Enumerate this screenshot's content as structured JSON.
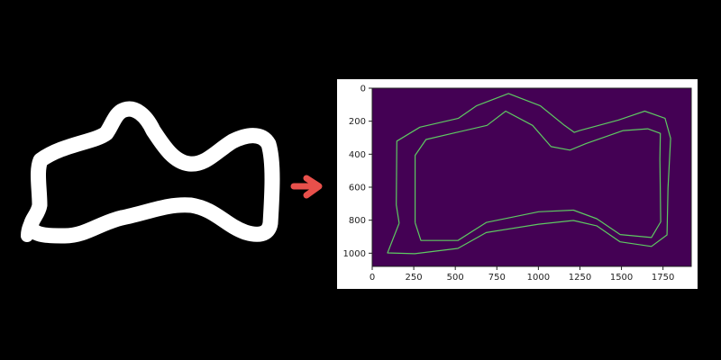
{
  "colors": {
    "background": "#000000",
    "sketch_stroke": "#ffffff",
    "arrow": "#e8504b",
    "plot_frame_bg": "#ffffff",
    "plot_area": "#440154",
    "contour": "#5ec962",
    "axis": "#222222"
  },
  "arrow": {
    "icon": "right-arrow-icon"
  },
  "chart_data": {
    "type": "image",
    "title": "",
    "xlabel": "",
    "ylabel": "",
    "xlim": [
      0,
      1920
    ],
    "ylim": [
      1080,
      0
    ],
    "x_ticks": [
      0,
      250,
      500,
      750,
      1000,
      1250,
      1500,
      1750
    ],
    "y_ticks": [
      0,
      200,
      400,
      600,
      800,
      1000
    ],
    "grid": false,
    "contours": [
      {
        "name": "",
        "points": [
          [
            162,
            818
          ],
          [
            92,
            998
          ],
          [
            256,
            1003
          ],
          [
            516,
            971
          ],
          [
            686,
            875
          ],
          [
            1001,
            824
          ],
          [
            1211,
            802
          ],
          [
            1351,
            834
          ],
          [
            1492,
            931
          ],
          [
            1680,
            959
          ],
          [
            1774,
            889
          ],
          [
            1780,
            605
          ],
          [
            1796,
            304
          ],
          [
            1762,
            182
          ],
          [
            1640,
            139
          ],
          [
            1481,
            193
          ],
          [
            1248,
            257
          ],
          [
            1216,
            268
          ],
          [
            1157,
            225
          ],
          [
            1012,
            107
          ],
          [
            820,
            32
          ],
          [
            627,
            107
          ],
          [
            519,
            182
          ],
          [
            287,
            236
          ],
          [
            148,
            321
          ],
          [
            145,
            707
          ],
          [
            162,
            818
          ]
        ]
      },
      {
        "name": "",
        "points": [
          [
            258,
            815
          ],
          [
            293,
            923
          ],
          [
            516,
            923
          ],
          [
            686,
            814
          ],
          [
            1001,
            749
          ],
          [
            1211,
            739
          ],
          [
            1351,
            791
          ],
          [
            1492,
            887
          ],
          [
            1680,
            905
          ],
          [
            1736,
            810
          ],
          [
            1731,
            430
          ],
          [
            1734,
            274
          ],
          [
            1658,
            246
          ],
          [
            1510,
            257
          ],
          [
            1286,
            336
          ],
          [
            1190,
            375
          ],
          [
            1076,
            354
          ],
          [
            965,
            225
          ],
          [
            803,
            139
          ],
          [
            691,
            225
          ],
          [
            509,
            268
          ],
          [
            324,
            311
          ],
          [
            258,
            407
          ],
          [
            258,
            815
          ]
        ]
      }
    ]
  }
}
